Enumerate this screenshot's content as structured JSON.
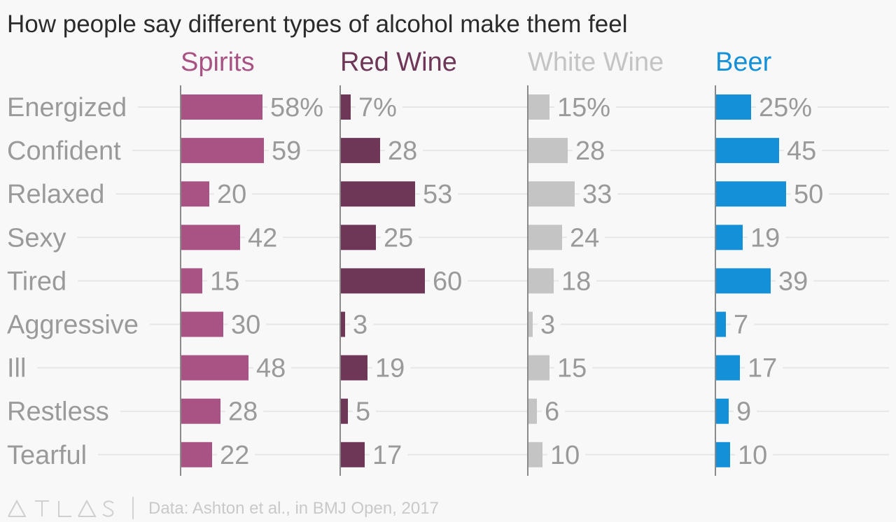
{
  "chart_data": {
    "type": "bar",
    "orientation": "horizontal",
    "layout": "small-multiples",
    "title": "How people say different types of alcohol make them feel",
    "categories": [
      "Energized",
      "Confident",
      "Relaxed",
      "Sexy",
      "Tired",
      "Aggressive",
      "Ill",
      "Restless",
      "Tearful"
    ],
    "unit_suffix": "%",
    "series": [
      {
        "name": "Spirits",
        "color": "#a85383",
        "values": [
          58,
          59,
          20,
          42,
          15,
          30,
          48,
          28,
          22
        ]
      },
      {
        "name": "Red Wine",
        "color": "#6e3758",
        "values": [
          7,
          28,
          53,
          25,
          60,
          3,
          19,
          5,
          17
        ]
      },
      {
        "name": "White Wine",
        "color": "#c4c4c4",
        "values": [
          15,
          28,
          33,
          24,
          18,
          3,
          15,
          6,
          10
        ]
      },
      {
        "name": "Beer",
        "color": "#1490d9",
        "values": [
          25,
          45,
          50,
          19,
          39,
          7,
          17,
          9,
          10
        ]
      }
    ],
    "xlim": [
      0,
      60
    ],
    "gridlines": true,
    "legend": "series titles above each panel"
  },
  "footer": {
    "brand": "ATLAS",
    "source": "Data: Ashton et al., in BMJ Open, 2017"
  }
}
